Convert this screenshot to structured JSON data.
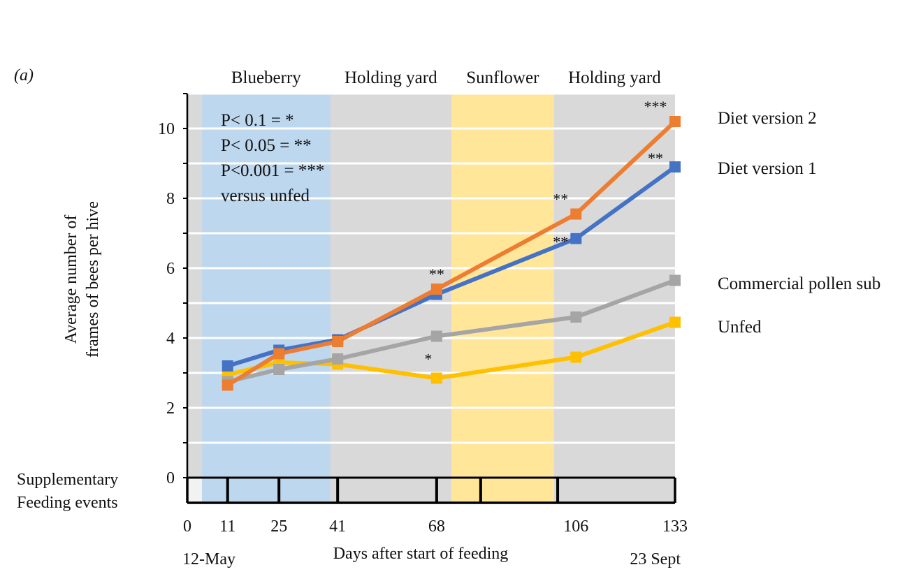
{
  "panel_label": "(a)",
  "chart_data": {
    "type": "line",
    "title": "",
    "ylabel": [
      "Average number of",
      "frames of bees per hive"
    ],
    "xlabel": "Days after start of feeding",
    "ylim": [
      0,
      11
    ],
    "xlim": [
      0,
      133
    ],
    "yticks": [
      0,
      2,
      4,
      6,
      8,
      10
    ],
    "xticks": [
      0,
      11,
      25,
      41,
      68,
      106,
      133
    ],
    "date_start": "12-May",
    "date_end": "23 Sept",
    "feeding_label": [
      "Supplementary",
      "Feeding events"
    ],
    "feeding_events": [
      0,
      11,
      25,
      41,
      68,
      80,
      101,
      133
    ],
    "seasons": [
      {
        "name": "Blueberry",
        "start": 4,
        "end": 39,
        "color": "#bdd7ee"
      },
      {
        "name": "Holding yard",
        "start": 39,
        "end": 72,
        "color": "#d9d9d9"
      },
      {
        "name": "Sunflower",
        "start": 72,
        "end": 100,
        "color": "#ffe699"
      },
      {
        "name": "Holding yard",
        "start": 100,
        "end": 133,
        "color": "#d9d9d9"
      }
    ],
    "significance_note": [
      "P< 0.1 = *",
      "P< 0.05 = **",
      "P<0.001 = ***",
      "versus unfed"
    ],
    "x": [
      11,
      25,
      41,
      68,
      106,
      133
    ],
    "series": [
      {
        "name": "Unfed",
        "color": "#ffc000",
        "values": [
          2.95,
          3.3,
          3.25,
          2.85,
          3.45,
          4.45
        ],
        "sig": [
          "",
          "",
          "",
          "",
          "",
          ""
        ]
      },
      {
        "name": "Commercial pollen sub",
        "color": "#a5a5a5",
        "values": [
          2.75,
          3.1,
          3.4,
          4.05,
          4.6,
          5.65
        ],
        "sig": [
          "",
          "",
          "",
          "*",
          "",
          ""
        ]
      },
      {
        "name": "Diet version 1",
        "color": "#4472c4",
        "values": [
          3.2,
          3.65,
          3.95,
          5.25,
          6.85,
          8.9
        ],
        "sig": [
          "",
          "",
          "",
          "",
          "**",
          "**"
        ]
      },
      {
        "name": "Diet version 2",
        "color": "#ed7d31",
        "values": [
          2.65,
          3.55,
          3.9,
          5.4,
          7.55,
          10.2
        ],
        "sig": [
          "",
          "",
          "",
          "**",
          "**",
          "***"
        ]
      }
    ]
  }
}
